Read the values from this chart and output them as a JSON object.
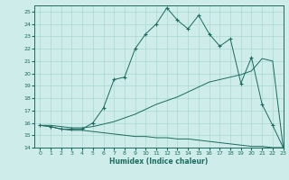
{
  "xlabel": "Humidex (Indice chaleur)",
  "bg_color": "#ceecea",
  "grid_color": "#a8d8d4",
  "line_color": "#1a6b60",
  "xlim": [
    -0.5,
    23
  ],
  "ylim": [
    14,
    25.5
  ],
  "xticks": [
    0,
    1,
    2,
    3,
    4,
    5,
    6,
    7,
    8,
    9,
    10,
    11,
    12,
    13,
    14,
    15,
    16,
    17,
    18,
    19,
    20,
    21,
    22,
    23
  ],
  "yticks": [
    14,
    15,
    16,
    17,
    18,
    19,
    20,
    21,
    22,
    23,
    24,
    25
  ],
  "line1_x": [
    0,
    1,
    2,
    3,
    4,
    5,
    6,
    7,
    8,
    9,
    10,
    11,
    12,
    13,
    14,
    15,
    16,
    17,
    18,
    19,
    20,
    21,
    22,
    23
  ],
  "line1_y": [
    15.8,
    15.7,
    15.5,
    15.5,
    15.5,
    16.0,
    17.2,
    19.5,
    19.7,
    22.0,
    23.2,
    24.0,
    25.3,
    24.3,
    23.6,
    24.7,
    23.2,
    22.2,
    22.8,
    19.2,
    21.3,
    17.5,
    15.8,
    14.0
  ],
  "line2_x": [
    0,
    1,
    2,
    3,
    4,
    5,
    6,
    7,
    8,
    9,
    10,
    11,
    12,
    13,
    14,
    15,
    16,
    17,
    18,
    19,
    20,
    21,
    22,
    23
  ],
  "line2_y": [
    15.8,
    15.8,
    15.7,
    15.6,
    15.6,
    15.7,
    15.9,
    16.1,
    16.4,
    16.7,
    17.1,
    17.5,
    17.8,
    18.1,
    18.5,
    18.9,
    19.3,
    19.5,
    19.7,
    19.9,
    20.2,
    21.2,
    21.0,
    14.0
  ],
  "line3_x": [
    0,
    1,
    2,
    3,
    4,
    5,
    6,
    7,
    8,
    9,
    10,
    11,
    12,
    13,
    14,
    15,
    16,
    17,
    18,
    19,
    20,
    21,
    22,
    23
  ],
  "line3_y": [
    15.8,
    15.7,
    15.5,
    15.4,
    15.4,
    15.3,
    15.2,
    15.1,
    15.0,
    14.9,
    14.9,
    14.8,
    14.8,
    14.7,
    14.7,
    14.6,
    14.5,
    14.4,
    14.3,
    14.2,
    14.1,
    14.1,
    14.0,
    14.0
  ]
}
